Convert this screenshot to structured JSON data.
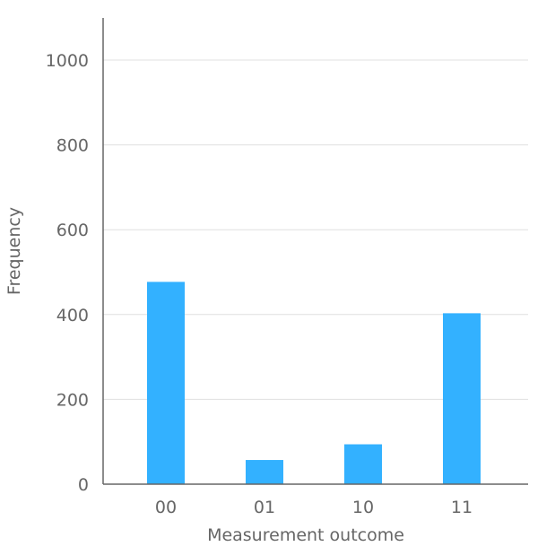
{
  "chart_data": {
    "type": "bar",
    "categories": [
      "00",
      "01",
      "10",
      "11"
    ],
    "values": [
      477,
      57,
      94,
      403
    ],
    "xlabel": "Measurement outcome",
    "ylabel": "Frequency",
    "ylim": [
      0,
      1100
    ],
    "yticks": [
      0,
      200,
      400,
      600,
      800,
      1000
    ],
    "grid": true,
    "bar_color": "#33b1ff",
    "grid_color": "#e0e0e0",
    "axis_color": "#666666"
  }
}
